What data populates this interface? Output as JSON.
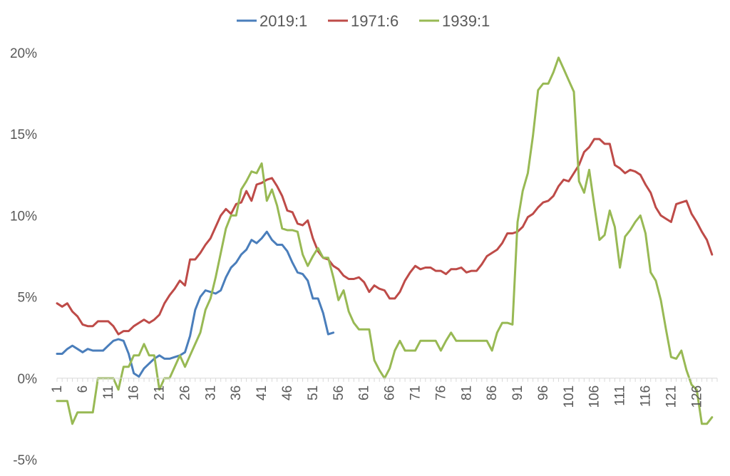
{
  "chart_data": {
    "type": "line",
    "title": "",
    "xlabel": "",
    "ylabel": "",
    "xlim": [
      1,
      130
    ],
    "ylim": [
      -5,
      20
    ],
    "y_ticks": [
      -5,
      0,
      5,
      10,
      15,
      20
    ],
    "y_tick_format": "%",
    "x_ticks": [
      1,
      6,
      11,
      16,
      21,
      26,
      31,
      36,
      41,
      46,
      51,
      56,
      61,
      66,
      71,
      76,
      81,
      86,
      91,
      96,
      101,
      106,
      111,
      116,
      121,
      126
    ],
    "grid": false,
    "legend": "top",
    "series": [
      {
        "name": "2019:1",
        "color": "#4a7ebb",
        "values": [
          1.5,
          1.5,
          1.8,
          2.0,
          1.8,
          1.6,
          1.8,
          1.7,
          1.7,
          1.7,
          2.0,
          2.3,
          2.4,
          2.3,
          1.5,
          0.3,
          0.1,
          0.6,
          0.9,
          1.2,
          1.4,
          1.2,
          1.2,
          1.3,
          1.4,
          1.6,
          2.6,
          4.2,
          5.0,
          5.4,
          5.3,
          5.2,
          5.4,
          6.2,
          6.8,
          7.1,
          7.6,
          7.9,
          8.5,
          8.3,
          8.6,
          9.0,
          8.5,
          8.2,
          8.2,
          7.8,
          7.1,
          6.5,
          6.4,
          6.0,
          4.9,
          4.9,
          4.0,
          2.7,
          2.8
        ]
      },
      {
        "name": "1971:6",
        "color": "#be4b48",
        "values": [
          4.6,
          4.4,
          4.6,
          4.1,
          3.8,
          3.3,
          3.2,
          3.2,
          3.5,
          3.5,
          3.5,
          3.2,
          2.7,
          2.9,
          2.9,
          3.2,
          3.4,
          3.6,
          3.4,
          3.6,
          3.9,
          4.6,
          5.1,
          5.5,
          6.0,
          5.7,
          7.3,
          7.3,
          7.7,
          8.2,
          8.6,
          9.3,
          10.0,
          10.4,
          10.1,
          10.7,
          10.8,
          11.5,
          10.9,
          11.9,
          12.0,
          12.2,
          12.3,
          11.8,
          11.2,
          10.3,
          10.2,
          9.5,
          9.4,
          9.7,
          8.6,
          7.8,
          7.4,
          7.3,
          6.9,
          6.7,
          6.3,
          6.1,
          6.1,
          6.2,
          5.9,
          5.3,
          5.7,
          5.5,
          5.4,
          4.9,
          4.9,
          5.3,
          6.0,
          6.5,
          6.9,
          6.7,
          6.8,
          6.8,
          6.6,
          6.6,
          6.4,
          6.7,
          6.7,
          6.8,
          6.5,
          6.6,
          6.6,
          7.0,
          7.5,
          7.7,
          7.9,
          8.3,
          8.9,
          8.9,
          9.0,
          9.3,
          9.9,
          10.1,
          10.5,
          10.8,
          10.9,
          11.2,
          11.8,
          12.2,
          12.1,
          12.6,
          13.1,
          13.9,
          14.2,
          14.7,
          14.7,
          14.4,
          14.4,
          13.1,
          12.9,
          12.6,
          12.8,
          12.7,
          12.5,
          11.9,
          11.4,
          10.5,
          10.0,
          9.8,
          9.6,
          10.7,
          10.8,
          10.9,
          10.1,
          9.6,
          9.0,
          8.5,
          7.6
        ]
      },
      {
        "name": "1939:1",
        "color": "#98b954",
        "values": [
          -1.4,
          -1.4,
          -1.4,
          -2.8,
          -2.1,
          -2.1,
          -2.1,
          -2.1,
          0.0,
          0.0,
          0.0,
          0.0,
          -0.7,
          0.7,
          0.7,
          1.4,
          1.4,
          2.1,
          1.4,
          1.4,
          -0.7,
          0.0,
          0.0,
          0.7,
          1.4,
          0.7,
          1.4,
          2.1,
          2.8,
          4.2,
          4.9,
          6.2,
          7.7,
          9.2,
          10.0,
          10.0,
          11.6,
          12.1,
          12.7,
          12.6,
          13.2,
          10.9,
          11.6,
          10.6,
          9.2,
          9.1,
          9.1,
          9.0,
          7.6,
          6.9,
          7.5,
          8.0,
          7.4,
          7.4,
          6.2,
          4.8,
          5.4,
          4.1,
          3.4,
          3.0,
          3.0,
          3.0,
          1.1,
          0.5,
          0.0,
          0.6,
          1.7,
          2.3,
          1.7,
          1.7,
          1.7,
          2.3,
          2.3,
          2.3,
          2.3,
          1.7,
          2.3,
          2.8,
          2.3,
          2.3,
          2.3,
          2.3,
          2.3,
          2.3,
          2.3,
          1.7,
          2.8,
          3.4,
          3.4,
          3.3,
          9.6,
          11.5,
          12.6,
          14.9,
          17.7,
          18.1,
          18.1,
          18.8,
          19.7,
          19.0,
          18.3,
          17.6,
          12.1,
          11.4,
          12.8,
          10.6,
          8.5,
          8.8,
          10.3,
          9.3,
          6.8,
          8.7,
          9.1,
          9.6,
          10.0,
          8.9,
          6.5,
          6.0,
          4.8,
          3.0,
          1.3,
          1.2,
          1.7,
          0.5,
          -0.4,
          -0.7,
          -2.8,
          -2.8,
          -2.4
        ]
      }
    ]
  }
}
